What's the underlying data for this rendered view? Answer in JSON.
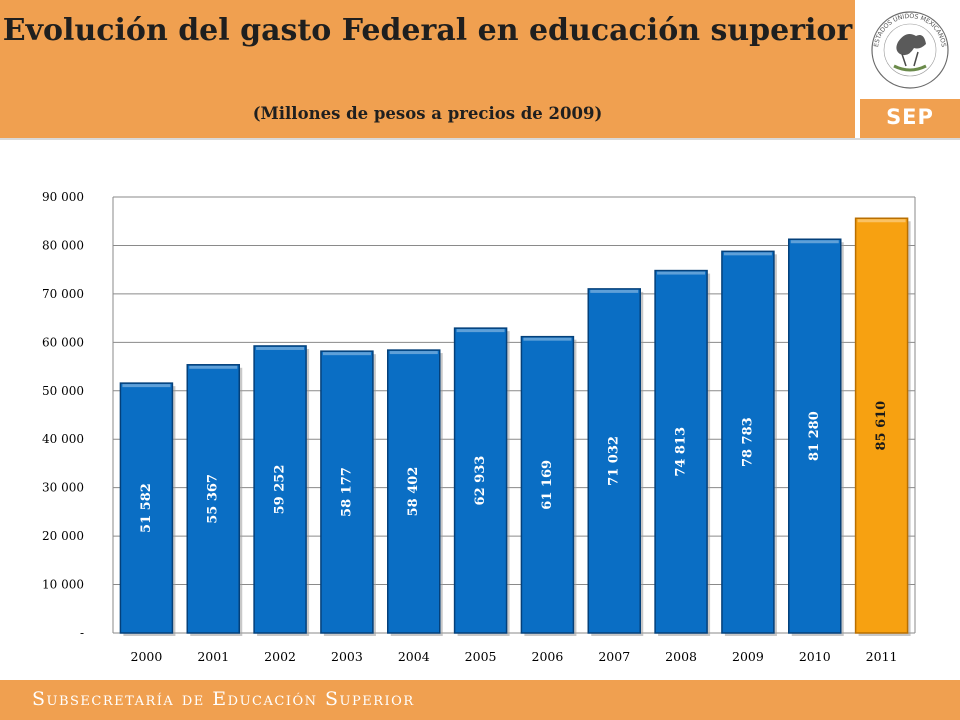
{
  "header": {
    "title": "Evolución del gasto Federal en educación superior",
    "subtitle": "(Millones de pesos a precios de 2009)"
  },
  "logo": {
    "seal_text": "ESTADOS UNIDOS MEXICANOS",
    "brand": "SEP"
  },
  "footer": {
    "text": "Subsecretaría de Educación Superior"
  },
  "chart_data": {
    "type": "bar",
    "title": "",
    "xlabel": "",
    "ylabel": "",
    "categories": [
      "2000",
      "2001",
      "2002",
      "2003",
      "2004",
      "2005",
      "2006",
      "2007",
      "2008",
      "2009",
      "2010",
      "2011"
    ],
    "values": [
      51582,
      55367,
      59252,
      58177,
      58402,
      62933,
      61169,
      71032,
      74813,
      78783,
      81280,
      85610
    ],
    "value_labels": [
      "51 582",
      "55 367",
      "59 252",
      "58 177",
      "58 402",
      "62 933",
      "61 169",
      "71 032",
      "74 813",
      "78 783",
      "81 280",
      "85 610"
    ],
    "ylim": [
      0,
      90000
    ],
    "yticks": [
      0,
      10000,
      20000,
      30000,
      40000,
      50000,
      60000,
      70000,
      80000,
      90000
    ],
    "ytick_labels": [
      "-",
      "10 000",
      "20 000",
      "30 000",
      "40 000",
      "50 000",
      "60 000",
      "70 000",
      "80 000",
      "90 000"
    ],
    "grid": true,
    "legend": "none",
    "colors": {
      "bar": "#0a6ec4",
      "highlight": "#f7a111",
      "highlight_category": "2011"
    }
  },
  "colors": {
    "header": "#f0a050",
    "footer": "#f0a050"
  }
}
